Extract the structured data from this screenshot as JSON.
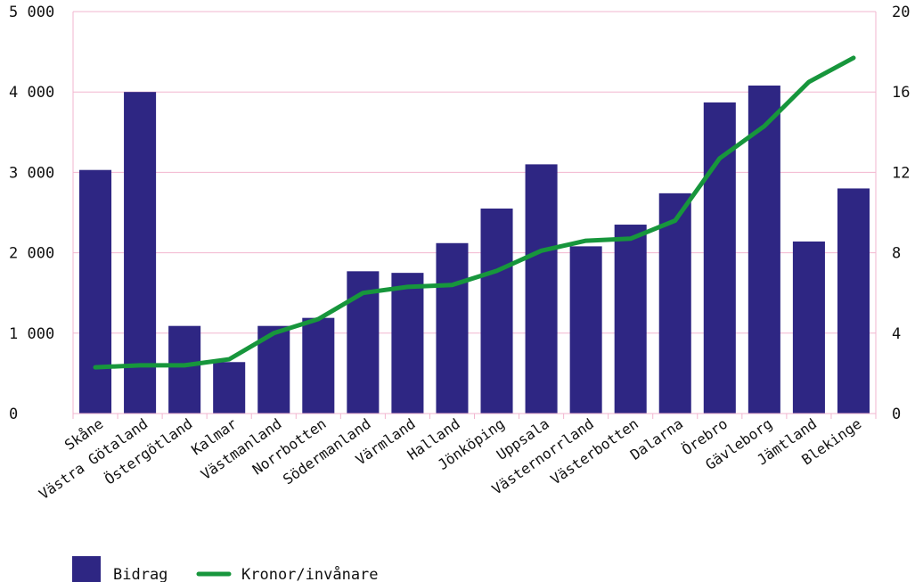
{
  "chart_data": {
    "type": "bar",
    "categories": [
      "Skåne",
      "Västra Götaland",
      "Östergötland",
      "Kalmar",
      "Västmanland",
      "Norrbotten",
      "Södermanland",
      "Värmland",
      "Halland",
      "Jönköping",
      "Uppsala",
      "Västernorrland",
      "Västerbotten",
      "Dalarna",
      "Örebro",
      "Gävleborg",
      "Jämtland",
      "Blekinge"
    ],
    "series": [
      {
        "name": "Bidrag",
        "type": "bar",
        "axis": "left",
        "color": "#2e2683",
        "values": [
          3030,
          4000,
          1090,
          640,
          1090,
          1190,
          1770,
          1750,
          2120,
          2550,
          3100,
          2080,
          2350,
          2740,
          3870,
          4080,
          2140,
          2800
        ]
      },
      {
        "name": "Kronor/invånare",
        "type": "line",
        "axis": "right",
        "color": "#17963c",
        "values": [
          2.3,
          2.4,
          2.4,
          2.7,
          4.0,
          4.7,
          6.0,
          6.3,
          6.4,
          7.1,
          8.1,
          8.6,
          8.7,
          9.6,
          12.7,
          14.3,
          16.5,
          17.7
        ]
      }
    ],
    "y_left": {
      "ylim": [
        0,
        5000
      ],
      "ticks": [
        0,
        1000,
        2000,
        3000,
        4000,
        5000
      ],
      "tick_labels": [
        "0",
        "1 000",
        "2 000",
        "3 000",
        "4 000",
        "5 000"
      ]
    },
    "y_right": {
      "ylim": [
        0,
        20
      ],
      "ticks": [
        0,
        4,
        8,
        12,
        16,
        20
      ],
      "tick_labels": [
        "0",
        "4",
        "8",
        "12",
        "16",
        "20"
      ]
    },
    "grid": true,
    "grid_color": "#f2b6cf",
    "legend": {
      "position": "bottom-left",
      "items": [
        "Bidrag",
        "Kronor/invånare"
      ]
    }
  }
}
